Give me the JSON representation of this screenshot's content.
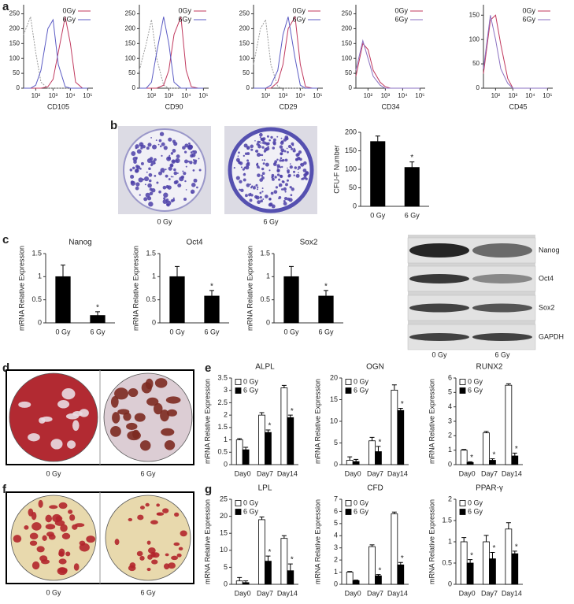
{
  "panel_labels": [
    "a",
    "b",
    "c",
    "d",
    "e",
    "f",
    "g"
  ],
  "chart_data": [
    {
      "type": "line",
      "xlabel": "CD105",
      "log_x": true,
      "legend": "upper right",
      "x": [
        20,
        50,
        100,
        200,
        500,
        1000,
        2000,
        5000,
        10000,
        20000,
        50000,
        100000
      ],
      "xlim": [
        20,
        200000
      ],
      "xticks": [
        {
          "value": 100,
          "label": "10²"
        },
        {
          "value": 1000,
          "label": "10³"
        },
        {
          "value": 10000,
          "label": "10⁴"
        },
        {
          "value": 100000,
          "label": "10⁵"
        }
      ],
      "ylim": [
        0,
        270
      ],
      "yticks": [
        0,
        50,
        100,
        150,
        200,
        250
      ],
      "series": [
        {
          "color": "#999999",
          "values": [
            180,
            240,
            120,
            20,
            0,
            0,
            0,
            0,
            0,
            0,
            0,
            0
          ]
        },
        {
          "name": "0Gy",
          "color": "#c0395e",
          "values": [
            0,
            0,
            0,
            0,
            5,
            30,
            120,
            240,
            150,
            20,
            0,
            0
          ]
        },
        {
          "name": "6Gy",
          "color": "#5b5bc4",
          "values": [
            0,
            0,
            10,
            60,
            200,
            230,
            80,
            5,
            0,
            0,
            0,
            0
          ]
        }
      ]
    },
    {
      "type": "line",
      "xlabel": "CD90",
      "log_x": true,
      "legend": "upper right",
      "x": [
        20,
        50,
        100,
        200,
        500,
        1000,
        2000,
        5000,
        10000,
        20000,
        50000,
        100000
      ],
      "xlim": [
        20,
        200000
      ],
      "xticks": [
        {
          "value": 100,
          "label": "10²"
        },
        {
          "value": 1000,
          "label": "10³"
        },
        {
          "value": 10000,
          "label": "10⁴"
        },
        {
          "value": 100000,
          "label": "10⁵"
        }
      ],
      "ylim": [
        0,
        270
      ],
      "yticks": [
        0,
        50,
        100,
        150,
        200,
        250
      ],
      "series": [
        {
          "color": "#999999",
          "values": [
            60,
            150,
            230,
            100,
            10,
            0,
            0,
            0,
            0,
            0,
            0,
            0
          ]
        },
        {
          "name": "0Gy",
          "color": "#c0395e",
          "values": [
            0,
            0,
            0,
            0,
            10,
            60,
            180,
            240,
            60,
            5,
            0,
            0
          ]
        },
        {
          "name": "6Gy",
          "color": "#5b5bc4",
          "values": [
            0,
            0,
            20,
            120,
            240,
            150,
            20,
            0,
            0,
            0,
            0,
            0
          ]
        }
      ]
    },
    {
      "type": "line",
      "xlabel": "CD29",
      "log_x": true,
      "legend": "upper right",
      "x": [
        20,
        50,
        100,
        200,
        500,
        1000,
        2000,
        5000,
        10000,
        20000,
        50000,
        100000
      ],
      "xlim": [
        20,
        200000
      ],
      "xticks": [
        {
          "value": 100,
          "label": "10²"
        },
        {
          "value": 1000,
          "label": "10³"
        },
        {
          "value": 10000,
          "label": "10⁴"
        },
        {
          "value": 100000,
          "label": "10⁵"
        }
      ],
      "ylim": [
        0,
        270
      ],
      "yticks": [
        0,
        50,
        100,
        150,
        200,
        250
      ],
      "series": [
        {
          "color": "#999999",
          "values": [
            80,
            200,
            230,
            80,
            5,
            0,
            0,
            0,
            0,
            0,
            0,
            0
          ]
        },
        {
          "name": "0Gy",
          "color": "#c0395e",
          "values": [
            0,
            0,
            0,
            0,
            20,
            80,
            200,
            240,
            80,
            5,
            0,
            0
          ]
        },
        {
          "name": "6Gy",
          "color": "#5b5bc4",
          "values": [
            0,
            0,
            0,
            10,
            60,
            180,
            240,
            100,
            10,
            0,
            0,
            0
          ]
        }
      ]
    },
    {
      "type": "line",
      "xlabel": "CD34",
      "log_x": true,
      "legend": "upper right",
      "x": [
        20,
        50,
        100,
        200,
        500,
        1000,
        2000,
        5000,
        10000,
        20000,
        50000,
        100000
      ],
      "xlim": [
        20,
        200000
      ],
      "xticks": [
        {
          "value": 100,
          "label": "10²"
        },
        {
          "value": 1000,
          "label": "10³"
        },
        {
          "value": 10000,
          "label": "10⁴"
        },
        {
          "value": 100000,
          "label": "10⁵"
        }
      ],
      "ylim": [
        0,
        270
      ],
      "yticks": [
        0,
        50,
        100,
        150,
        200,
        250
      ],
      "series": [
        {
          "name": "0Gy",
          "color": "#c0395e",
          "values": [
            40,
            150,
            130,
            60,
            20,
            5,
            0,
            0,
            0,
            0,
            0,
            0
          ]
        },
        {
          "name": "6Gy",
          "color": "#8a6fc0",
          "values": [
            60,
            160,
            100,
            40,
            10,
            0,
            0,
            0,
            0,
            0,
            0,
            0
          ]
        }
      ]
    },
    {
      "type": "line",
      "xlabel": "CD45",
      "log_x": true,
      "legend": "upper right",
      "x": [
        20,
        50,
        100,
        200,
        500,
        1000,
        2000,
        5000,
        10000,
        20000,
        50000,
        100000
      ],
      "xlim": [
        20,
        200000
      ],
      "xticks": [
        {
          "value": 100,
          "label": "10²"
        },
        {
          "value": 1000,
          "label": "10³"
        },
        {
          "value": 10000,
          "label": "10⁴"
        },
        {
          "value": 100000,
          "label": "10⁵"
        }
      ],
      "ylim": [
        0,
        165
      ],
      "yticks": [
        0,
        50,
        100,
        150
      ],
      "series": [
        {
          "name": "0Gy",
          "color": "#c0395e",
          "values": [
            30,
            140,
            150,
            90,
            20,
            0,
            0,
            0,
            0,
            0,
            0,
            0
          ]
        },
        {
          "name": "6Gy",
          "color": "#8a6fc0",
          "values": [
            40,
            150,
            100,
            40,
            10,
            0,
            0,
            0,
            0,
            0,
            0,
            0
          ]
        }
      ]
    },
    {
      "type": "bar",
      "ylabel": "CFU-F Number",
      "categories": [
        "0 Gy",
        "6 Gy"
      ],
      "values": [
        175,
        105
      ],
      "errors": [
        15,
        15
      ],
      "significance": [
        null,
        "*"
      ],
      "color": "#000000",
      "ylim": [
        0,
        200
      ],
      "yticks": [
        0,
        50,
        100,
        150,
        200
      ]
    },
    {
      "type": "bar",
      "title": "Nanog",
      "ylabel": "mRNA Relative Expression",
      "categories": [
        "0 Gy",
        "6 Gy"
      ],
      "values": [
        1,
        0.16
      ],
      "errors": [
        0.25,
        0.08
      ],
      "significance": [
        null,
        "*"
      ],
      "color": "#000000",
      "ylim": [
        0,
        1.5
      ],
      "yticks": [
        0,
        0.5,
        1,
        1.5
      ]
    },
    {
      "type": "bar",
      "title": "Oct4",
      "ylabel": "mRNA Relative Expression",
      "categories": [
        "0 Gy",
        "6 Gy"
      ],
      "values": [
        1,
        0.58
      ],
      "errors": [
        0.22,
        0.12
      ],
      "significance": [
        null,
        "*"
      ],
      "color": "#000000",
      "ylim": [
        0,
        1.5
      ],
      "yticks": [
        0,
        0.5,
        1,
        1.5
      ]
    },
    {
      "type": "bar",
      "title": "Sox2",
      "ylabel": "mRNA Relative Expression",
      "categories": [
        "0 Gy",
        "6 Gy"
      ],
      "values": [
        1,
        0.58
      ],
      "errors": [
        0.22,
        0.12
      ],
      "significance": [
        null,
        "*"
      ],
      "color": "#000000",
      "ylim": [
        0,
        1.5
      ],
      "yticks": [
        0,
        0.5,
        1,
        1.5
      ]
    },
    {
      "type": "bar",
      "title": "ALPL",
      "ylabel": "mRNA Relative Expression",
      "categories": [
        "Day0",
        "Day7",
        "Day14"
      ],
      "ylim": [
        0,
        3.5
      ],
      "yticks": [
        0,
        0.5,
        1,
        1.5,
        2,
        2.5,
        3,
        3.5
      ],
      "series": [
        {
          "name": "0 Gy",
          "color": "#ffffff",
          "values": [
            1,
            2,
            3.1
          ],
          "errors": [
            0.05,
            0.1,
            0.1
          ]
        },
        {
          "name": "6 Gy",
          "color": "#000000",
          "values": [
            0.6,
            1.3,
            1.9
          ],
          "errors": [
            0.1,
            0.1,
            0.1
          ],
          "significance": [
            null,
            "*",
            "*"
          ]
        }
      ]
    },
    {
      "type": "bar",
      "title": "OGN",
      "ylabel": "mRNA Relative Expression",
      "categories": [
        "Day0",
        "Day7",
        "Day14"
      ],
      "ylim": [
        0,
        20
      ],
      "yticks": [
        0,
        5,
        10,
        15,
        20
      ],
      "series": [
        {
          "name": "0 Gy",
          "color": "#ffffff",
          "values": [
            1,
            5.5,
            17.2
          ],
          "errors": [
            0.8,
            0.8,
            1.2
          ]
        },
        {
          "name": "6 Gy",
          "color": "#000000",
          "values": [
            0.7,
            3,
            12.5
          ],
          "errors": [
            0.5,
            1.2,
            0.5
          ],
          "significance": [
            null,
            "*",
            "*"
          ]
        }
      ]
    },
    {
      "type": "bar",
      "title": "RUNX2",
      "ylabel": "mRNA Relative Expression",
      "categories": [
        "Day0",
        "Day7",
        "Day14"
      ],
      "ylim": [
        0,
        6
      ],
      "yticks": [
        0,
        1,
        2,
        3,
        4,
        5,
        6
      ],
      "series": [
        {
          "name": "0 Gy",
          "color": "#ffffff",
          "values": [
            1,
            2.2,
            5.5
          ],
          "errors": [
            0.05,
            0.1,
            0.1
          ]
        },
        {
          "name": "6 Gy",
          "color": "#000000",
          "values": [
            0.15,
            0.3,
            0.6
          ],
          "errors": [
            0.05,
            0.1,
            0.2
          ],
          "significance": [
            "*",
            "*",
            "*"
          ]
        }
      ]
    },
    {
      "type": "bar",
      "title": "LPL",
      "ylabel": "mRNA Relative Expression",
      "categories": [
        "Day0",
        "Day7",
        "Day14"
      ],
      "ylim": [
        0,
        25
      ],
      "yticks": [
        0,
        5,
        10,
        15,
        20,
        25
      ],
      "series": [
        {
          "name": "0 Gy",
          "color": "#ffffff",
          "values": [
            1,
            19,
            13.5
          ],
          "errors": [
            1,
            0.8,
            0.8
          ]
        },
        {
          "name": "6 Gy",
          "color": "#000000",
          "values": [
            0.5,
            6.8,
            4
          ],
          "errors": [
            0.5,
            1.5,
            2
          ],
          "significance": [
            null,
            "*",
            "*"
          ]
        }
      ]
    },
    {
      "type": "bar",
      "title": "CFD",
      "ylabel": "mRNA Relative Expression",
      "categories": [
        "Day0",
        "Day7",
        "Day14"
      ],
      "ylim": [
        0,
        7
      ],
      "yticks": [
        0,
        1,
        2,
        3,
        4,
        5,
        6,
        7
      ],
      "series": [
        {
          "name": "0 Gy",
          "color": "#ffffff",
          "values": [
            1,
            3.1,
            5.8
          ],
          "errors": [
            0.05,
            0.15,
            0.15
          ]
        },
        {
          "name": "6 Gy",
          "color": "#000000",
          "values": [
            0.3,
            0.7,
            1.6
          ],
          "errors": [
            0.05,
            0.1,
            0.2
          ],
          "significance": [
            null,
            "*",
            "*"
          ]
        }
      ]
    },
    {
      "type": "bar",
      "title": "PPAR-γ",
      "ylabel": "mRNA Relative Expression",
      "categories": [
        "Day0",
        "Day7",
        "Day14"
      ],
      "ylim": [
        0,
        2
      ],
      "yticks": [
        0,
        0.5,
        1,
        1.5,
        2
      ],
      "series": [
        {
          "name": "0 Gy",
          "color": "#ffffff",
          "values": [
            1,
            1,
            1.3
          ],
          "errors": [
            0.1,
            0.15,
            0.15
          ]
        },
        {
          "name": "6 Gy",
          "color": "#000000",
          "values": [
            0.5,
            0.6,
            0.72
          ],
          "errors": [
            0.08,
            0.15,
            0.06
          ],
          "significance": [
            "*",
            "*",
            "*"
          ]
        }
      ]
    }
  ],
  "images": [
    {
      "labels": [
        "0 Gy",
        "6 Gy"
      ]
    },
    {
      "bands": [
        "Nanog",
        "Oct4",
        "Sox2",
        "GAPDH"
      ],
      "labels": [
        "0 Gy",
        "6 Gy"
      ]
    },
    {
      "labels": [
        "0 Gy",
        "6 Gy"
      ]
    },
    {
      "labels": [
        "0 Gy",
        "6 Gy"
      ]
    }
  ]
}
